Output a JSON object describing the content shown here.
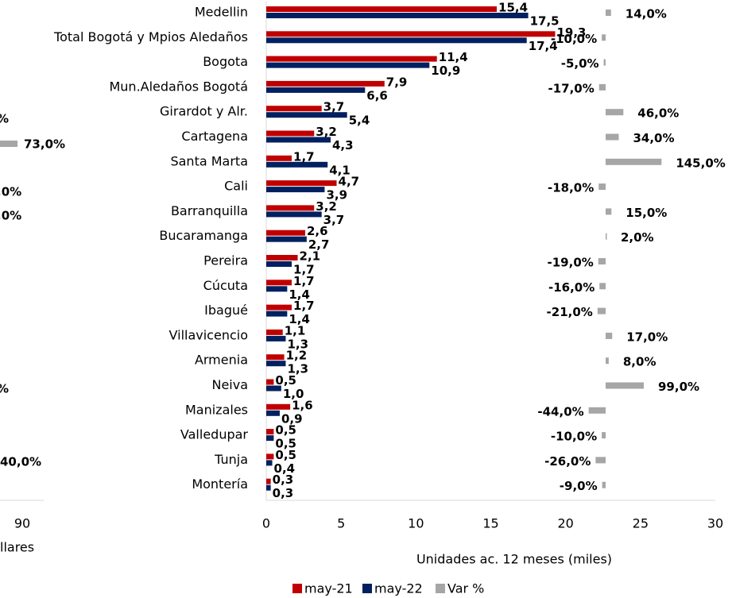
{
  "chart_data": [
    {
      "type": "hbar",
      "xlabel": "Unidades ac. 12 meses (miles)",
      "categories": [
        "Medellin",
        "Total Bogotá y Mpios Aledaños",
        "Bogota",
        "Mun.Aledaños Bogotá",
        "Girardot y Alr.",
        "Cartagena",
        "Santa Marta",
        "Cali",
        "Barranquilla",
        "Bucaramanga",
        "Pereira",
        "Cúcuta",
        "Ibagué",
        "Villavicencio",
        "Armenia",
        "Neiva",
        "Manizales",
        "Valledupar",
        "Tunja",
        "Montería"
      ],
      "series": [
        {
          "name": "may-21",
          "color": "#c00000",
          "values": [
            15.4,
            19.3,
            11.4,
            7.9,
            3.7,
            3.2,
            1.7,
            4.7,
            3.2,
            2.6,
            2.1,
            1.7,
            1.7,
            1.1,
            1.2,
            0.5,
            1.6,
            0.5,
            0.5,
            0.3
          ],
          "value_labels": [
            "15,4",
            "19,3",
            "11,4",
            "7,9",
            "3,7",
            "3,2",
            "1,7",
            "4,7",
            "3,2",
            "2,6",
            "2,1",
            "1,7",
            "1,7",
            "1,1",
            "1,2",
            "0,5",
            "1,6",
            "0,5",
            "0,5",
            "0,3"
          ]
        },
        {
          "name": "may-22",
          "color": "#002060",
          "values": [
            17.5,
            17.4,
            10.9,
            6.6,
            5.4,
            4.3,
            4.1,
            3.9,
            3.7,
            2.7,
            1.7,
            1.4,
            1.4,
            1.3,
            1.3,
            1.0,
            0.9,
            0.5,
            0.4,
            0.3
          ],
          "value_labels": [
            "17,5",
            "17,4",
            "10,9",
            "6,6",
            "5,4",
            "4,3",
            "4,1",
            "3,9",
            "3,7",
            "2,7",
            "1,7",
            "1,4",
            "1,4",
            "1,3",
            "1,3",
            "1,0",
            "0,9",
            "0,5",
            "0,4",
            "0,3"
          ]
        },
        {
          "name": "Var %",
          "color": "#a6a6a6",
          "axis": "x2",
          "values": [
            14,
            -10,
            -5,
            -17,
            46,
            34,
            145,
            -18,
            15,
            2,
            -19,
            -16,
            -21,
            17,
            8,
            99,
            -44,
            -10,
            -26,
            -9
          ],
          "value_labels": [
            "14,0%",
            "-10,0%",
            "-5,0%",
            "-17,0%",
            "46,0%",
            "34,0%",
            "145,0%",
            "-18,0%",
            "15,0%",
            "2,0%",
            "-19,0%",
            "-16,0%",
            "-21,0%",
            "17,0%",
            "8,0%",
            "99,0%",
            "-44,0%",
            "-10,0%",
            "-26,0%",
            "-9,0%"
          ]
        }
      ],
      "xlim": [
        0,
        30
      ],
      "xticks": [
        0,
        5,
        10,
        15,
        20,
        25,
        30
      ],
      "legend": "bottom"
    },
    {
      "type": "fragment",
      "xticks": [
        90
      ],
      "xlabel": "llares",
      "value_labels": [
        "%",
        "73,0%",
        ",0%",
        ",0%",
        "%",
        "40,0%"
      ]
    }
  ]
}
